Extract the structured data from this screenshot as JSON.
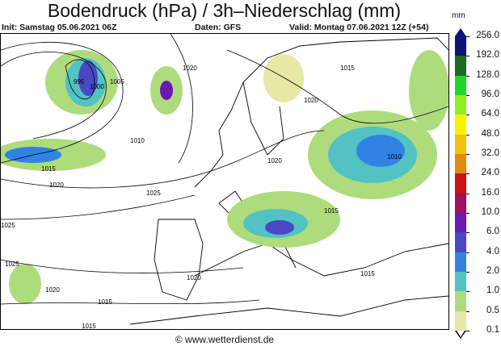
{
  "title": "Bodendruck (hPa) / 3h–Niederschlag (mm)",
  "init": "Init: Samstag 05.06.2021 06Z",
  "source": "Daten: GFS",
  "valid": "Valid: Montag 07.06.2021 12Z (+54)",
  "footer": "© www.wetterdienst.de",
  "legend": {
    "unit": "mm",
    "labels": [
      "256.0",
      "192.0",
      "128.0",
      "96.0",
      "64.0",
      "48.0",
      "32.0",
      "24.0",
      "16.0",
      "10.0",
      "6.0",
      "4.0",
      "2.0",
      "1.0",
      "0.5",
      "0.1"
    ],
    "colors": [
      "#0c1478",
      "#1a6a22",
      "#1ed62a",
      "#90ee1e",
      "#f8f400",
      "#f0c20e",
      "#e08a10",
      "#cc1212",
      "#a0105e",
      "#6a18b4",
      "#4a48c4",
      "#3282e4",
      "#52c2c2",
      "#aedc7c",
      "#e6e8a4"
    ],
    "top_arrow_color": "#0c1478",
    "bottom_arrow_color": "#ffffff"
  },
  "isobar_labels": [
    "995",
    "1000",
    "1005",
    "1020",
    "1010",
    "1015",
    "1020",
    "1025",
    "1025",
    "1020",
    "1015",
    "1020",
    "1010",
    "1015",
    "1015",
    "1020",
    "1015",
    "1025",
    "1020",
    "1015"
  ]
}
